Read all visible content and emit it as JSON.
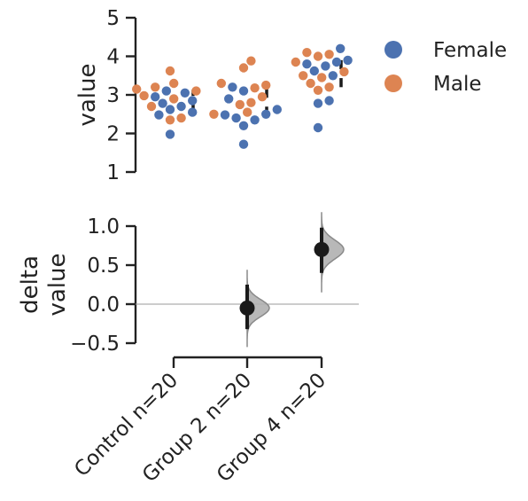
{
  "colors": {
    "female": "#4c72b0",
    "male": "#dd8452",
    "axis": "#222222",
    "violin_fill": "#b0b0b0",
    "violin_edge": "#8a8a8a",
    "effect_dot": "#1a1a1a",
    "zero_line": "#9a9a9a"
  },
  "chart_data": [
    {
      "type": "scatter",
      "panel": "swarm",
      "ylabel": "value",
      "ylim": [
        1,
        5
      ],
      "yticks": [
        "1",
        "2",
        "3",
        "4",
        "5"
      ],
      "categories": [
        "Control",
        "Group 2",
        "Group 4"
      ],
      "legend": {
        "placement": "top-right",
        "entries": [
          "Female",
          "Male"
        ]
      },
      "series": [
        {
          "name": "Female",
          "values": [
            [
              3.1,
              3.05,
              2.95,
              2.85,
              2.78,
              2.7,
              2.62,
              2.55,
              2.48,
              1.98
            ],
            [
              3.2,
              3.1,
              2.9,
              2.62,
              2.5,
              2.48,
              2.4,
              2.35,
              2.2,
              1.72
            ],
            [
              4.2,
              3.9,
              3.85,
              3.8,
              3.75,
              3.62,
              3.5,
              2.85,
              2.78,
              2.15
            ]
          ]
        },
        {
          "name": "Male",
          "values": [
            [
              3.62,
              3.3,
              3.2,
              3.15,
              3.1,
              2.98,
              2.9,
              2.7,
              2.4,
              2.35
            ],
            [
              3.88,
              3.7,
              3.3,
              3.25,
              3.18,
              2.95,
              2.8,
              2.75,
              2.55,
              2.5
            ],
            [
              4.1,
              4.05,
              4.0,
              3.85,
              3.6,
              3.5,
              3.45,
              3.3,
              3.2,
              3.12
            ]
          ]
        }
      ],
      "group_summary": [
        {
          "mean": 2.86,
          "sd": 0.27
        },
        {
          "mean": 2.81,
          "sd": 0.37
        },
        {
          "mean": 3.55,
          "sd": 0.35
        }
      ]
    },
    {
      "type": "scatter",
      "panel": "delta",
      "ylabel": [
        "delta",
        "value"
      ],
      "ylim": [
        -0.5,
        1.0
      ],
      "yticks": [
        "−0.5",
        "0.0",
        "0.5",
        "1.0"
      ],
      "categories": [
        "Control n=20",
        "Group 2 n=20",
        "Group 4 n=20"
      ],
      "reference_line": 0,
      "effects": [
        null,
        {
          "delta": -0.05,
          "ci": [
            -0.32,
            0.25
          ],
          "dist_range": [
            -0.55,
            0.44
          ],
          "dist_sd": 0.11
        },
        {
          "delta": 0.7,
          "ci": [
            0.4,
            0.98
          ],
          "dist_range": [
            0.15,
            1.18
          ],
          "dist_sd": 0.12
        }
      ]
    }
  ]
}
